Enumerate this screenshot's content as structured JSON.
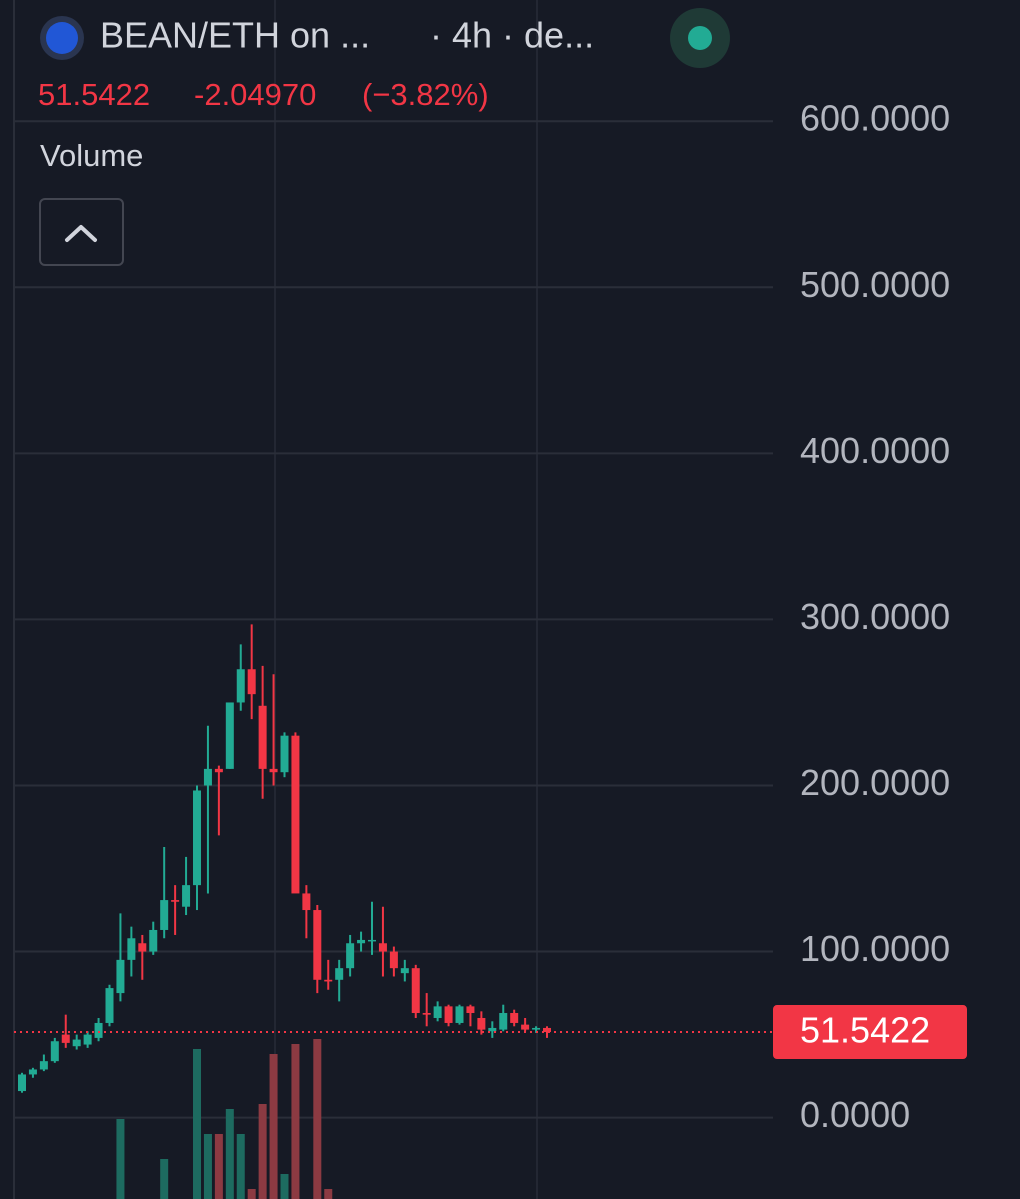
{
  "header": {
    "symbol": "BEAN/ETH on ...",
    "interval": "· 4h · de...",
    "price": "51.5422",
    "change": "-2.04970",
    "change_pct": "(−3.82%)",
    "volume_label": "Volume"
  },
  "chart_data": {
    "type": "candlestick",
    "ylim": [
      -49,
      673
    ],
    "yticks": [
      {
        "value": 600,
        "label": "600.0000"
      },
      {
        "value": 500,
        "label": "500.0000"
      },
      {
        "value": 400,
        "label": "400.0000"
      },
      {
        "value": 300,
        "label": "300.0000"
      },
      {
        "value": 200,
        "label": "200.0000"
      },
      {
        "value": 100,
        "label": "100.0000"
      },
      {
        "value": 0,
        "label": "0.0000"
      }
    ],
    "grid": true,
    "up_color": "#22ab94",
    "down_color": "#f23645",
    "volume_up_color": "#1d6b60",
    "volume_down_color": "#8c3a42",
    "open": [
      16,
      26,
      29,
      34,
      50,
      43,
      44,
      48,
      57,
      75,
      95,
      105,
      100,
      113,
      131,
      127,
      140,
      200,
      210,
      210,
      250,
      270,
      248,
      210,
      208,
      230,
      135,
      125,
      83,
      83,
      90,
      105,
      107,
      105,
      100,
      87,
      90,
      63,
      60,
      67,
      57,
      67,
      60,
      52,
      53,
      63,
      56,
      53,
      54
    ],
    "high": [
      27,
      30,
      38,
      48,
      62,
      50,
      52,
      60,
      80,
      123,
      115,
      110,
      118,
      163,
      140,
      157,
      200,
      236,
      212,
      250,
      285,
      297,
      272,
      267,
      232,
      232,
      140,
      128,
      95,
      95,
      110,
      112,
      130,
      127,
      103,
      95,
      92,
      75,
      70,
      68,
      68,
      68,
      64,
      58,
      68,
      65,
      60,
      55,
      55
    ],
    "low": [
      15,
      24,
      28,
      33,
      42,
      41,
      42,
      46,
      55,
      70,
      85,
      83,
      98,
      108,
      110,
      122,
      125,
      135,
      170,
      210,
      245,
      240,
      192,
      200,
      205,
      140,
      108,
      75,
      77,
      70,
      85,
      100,
      98,
      85,
      85,
      82,
      60,
      55,
      58,
      55,
      56,
      55,
      50,
      48,
      52,
      55,
      52,
      51,
      48
    ],
    "close": [
      26,
      29,
      34,
      46,
      45,
      47,
      50,
      57,
      78,
      95,
      108,
      100,
      113,
      131,
      130,
      140,
      197,
      210,
      208,
      250,
      270,
      255,
      210,
      208,
      230,
      135,
      125,
      83,
      82,
      90,
      105,
      107,
      107,
      100,
      90,
      90,
      63,
      62,
      67,
      57,
      67,
      63,
      53,
      54,
      63,
      57,
      53,
      54,
      51.5422
    ],
    "volume": [
      0,
      0,
      0,
      0,
      0,
      0,
      0,
      0,
      0,
      80,
      0,
      0,
      0,
      40,
      0,
      0,
      150,
      65,
      65,
      90,
      65,
      10,
      95,
      145,
      25,
      155,
      0,
      160,
      10,
      0,
      0,
      0,
      0,
      0,
      0,
      0,
      0,
      0,
      0,
      0,
      0,
      0,
      0,
      0,
      0,
      0,
      0,
      0,
      0
    ],
    "last_price_label": "51.5422"
  }
}
